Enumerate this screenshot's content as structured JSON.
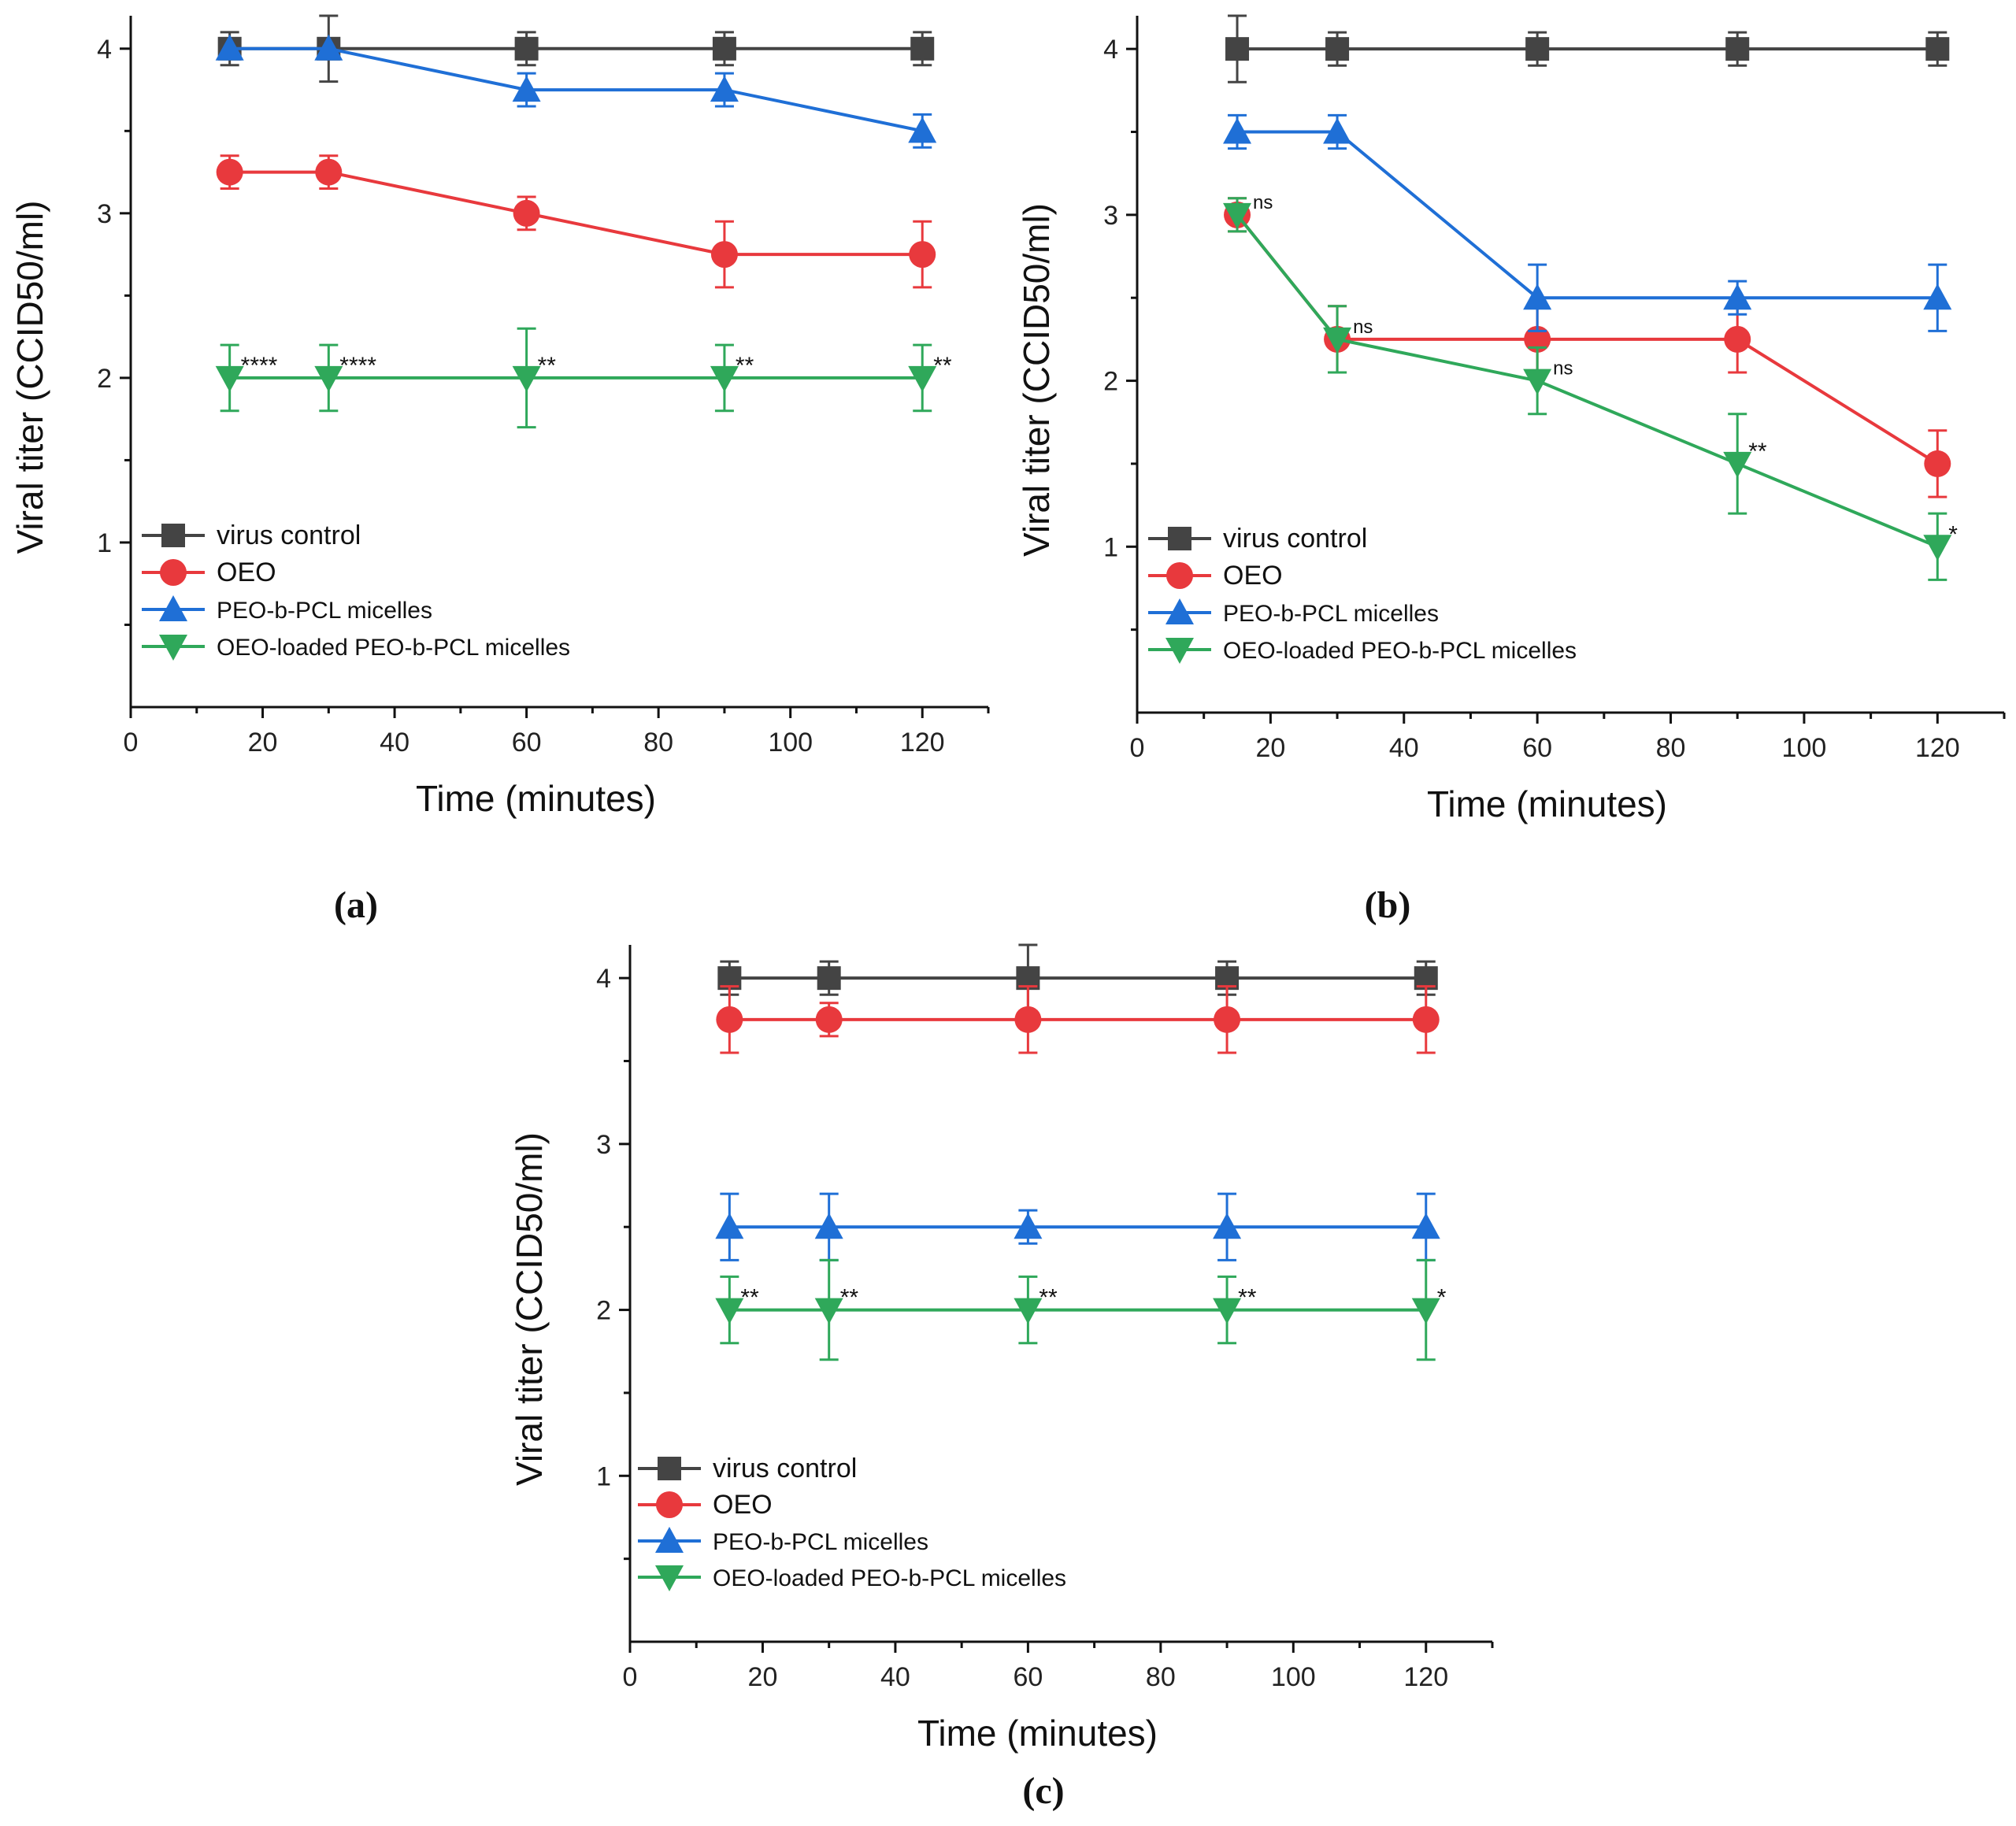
{
  "chart_data": [
    {
      "panel": "a",
      "type": "line",
      "panel_label": "(a)",
      "xlabel": "Time (minutes)",
      "ylabel": "Viral titer (CCID50/ml)",
      "xlim": [
        0,
        130
      ],
      "ylim": [
        0,
        4.2
      ],
      "xticks": [
        0,
        20,
        40,
        60,
        80,
        100,
        120
      ],
      "yticks": [
        1,
        2,
        3,
        4
      ],
      "x": [
        15,
        30,
        60,
        90,
        120
      ],
      "series": [
        {
          "name": "virus control",
          "color": "#444444",
          "marker": "square",
          "values": [
            4,
            4,
            4,
            4,
            4
          ],
          "errors": [
            0.1,
            0.2,
            0.1,
            0.1,
            0.1
          ]
        },
        {
          "name": "OEO",
          "color": "#e8393d",
          "marker": "circle",
          "values": [
            3.25,
            3.25,
            3.0,
            2.75,
            2.75
          ],
          "errors": [
            0.1,
            0.1,
            0.1,
            0.2,
            0.2
          ]
        },
        {
          "name": "PEO-b-PCL micelles",
          "color": "#1f6fd6",
          "marker": "triangle-up",
          "values": [
            4,
            4,
            3.75,
            3.75,
            3.5
          ],
          "errors": [
            0.0,
            0.0,
            0.1,
            0.1,
            0.1
          ]
        },
        {
          "name": "OEO-loaded PEO-b-PCL micelles",
          "color": "#2fa85a",
          "marker": "triangle-down",
          "values": [
            2,
            2,
            2,
            2,
            2
          ],
          "errors": [
            0.2,
            0.2,
            0.3,
            0.2,
            0.2
          ]
        }
      ],
      "annotations": [
        {
          "text": "****",
          "x": 15,
          "y": 2
        },
        {
          "text": "****",
          "x": 30,
          "y": 2
        },
        {
          "text": "**",
          "x": 60,
          "y": 2
        },
        {
          "text": "**",
          "x": 90,
          "y": 2
        },
        {
          "text": "**",
          "x": 120,
          "y": 2
        }
      ],
      "legend": "lower-left"
    },
    {
      "panel": "b",
      "type": "line",
      "panel_label": "(b)",
      "xlabel": "Time (minutes)",
      "ylabel": "Viral titer (CCID50/ml)",
      "xlim": [
        0,
        130
      ],
      "ylim": [
        0,
        4.2
      ],
      "xticks": [
        0,
        20,
        40,
        60,
        80,
        100,
        120
      ],
      "yticks": [
        1,
        2,
        3,
        4
      ],
      "x": [
        15,
        30,
        60,
        90,
        120
      ],
      "series": [
        {
          "name": "virus control",
          "color": "#444444",
          "marker": "square",
          "values": [
            4,
            4,
            4,
            4,
            4
          ],
          "errors": [
            0.2,
            0.1,
            0.1,
            0.1,
            0.1
          ]
        },
        {
          "name": "OEO",
          "color": "#e8393d",
          "marker": "circle",
          "values": [
            3.0,
            2.25,
            2.25,
            2.25,
            1.5
          ],
          "errors": [
            0.1,
            0.2,
            0.2,
            0.2,
            0.2
          ]
        },
        {
          "name": "PEO-b-PCL micelles",
          "color": "#1f6fd6",
          "marker": "triangle-up",
          "values": [
            3.5,
            3.5,
            2.5,
            2.5,
            2.5
          ],
          "errors": [
            0.1,
            0.1,
            0.2,
            0.1,
            0.2
          ]
        },
        {
          "name": "OEO-loaded PEO-b-PCL micelles",
          "color": "#2fa85a",
          "marker": "triangle-down",
          "values": [
            3.0,
            2.25,
            2.0,
            1.5,
            1.0
          ],
          "errors": [
            0.1,
            0.2,
            0.2,
            0.3,
            0.2
          ]
        }
      ],
      "annotations": [
        {
          "text": "ns",
          "x": 15,
          "y": 3.0,
          "small": true
        },
        {
          "text": "ns",
          "x": 30,
          "y": 2.25,
          "small": true
        },
        {
          "text": "ns",
          "x": 60,
          "y": 2.0,
          "small": true
        },
        {
          "text": "**",
          "x": 90,
          "y": 1.5
        },
        {
          "text": "*",
          "x": 120,
          "y": 1.0
        }
      ],
      "legend": "lower-left"
    },
    {
      "panel": "c",
      "type": "line",
      "panel_label": "(c)",
      "xlabel": "Time (minutes)",
      "ylabel": "Viral titer (CCID50/ml)",
      "xlim": [
        0,
        130
      ],
      "ylim": [
        0,
        4.2
      ],
      "xticks": [
        0,
        20,
        40,
        60,
        80,
        100,
        120
      ],
      "yticks": [
        1,
        2,
        3,
        4
      ],
      "x": [
        15,
        30,
        60,
        90,
        120
      ],
      "series": [
        {
          "name": "virus control",
          "color": "#444444",
          "marker": "square",
          "values": [
            4,
            4,
            4,
            4,
            4
          ],
          "errors": [
            0.1,
            0.1,
            0.2,
            0.1,
            0.1
          ]
        },
        {
          "name": "OEO",
          "color": "#e8393d",
          "marker": "circle",
          "values": [
            3.75,
            3.75,
            3.75,
            3.75,
            3.75
          ],
          "errors": [
            0.2,
            0.1,
            0.2,
            0.2,
            0.2
          ]
        },
        {
          "name": "PEO-b-PCL micelles",
          "color": "#1f6fd6",
          "marker": "triangle-up",
          "values": [
            2.5,
            2.5,
            2.5,
            2.5,
            2.5
          ],
          "errors": [
            0.2,
            0.2,
            0.1,
            0.2,
            0.2
          ]
        },
        {
          "name": "OEO-loaded PEO-b-PCL micelles",
          "color": "#2fa85a",
          "marker": "triangle-down",
          "values": [
            2,
            2,
            2,
            2,
            2
          ],
          "errors": [
            0.2,
            0.3,
            0.2,
            0.2,
            0.3
          ]
        }
      ],
      "annotations": [
        {
          "text": "**",
          "x": 15,
          "y": 2
        },
        {
          "text": "**",
          "x": 30,
          "y": 2
        },
        {
          "text": "**",
          "x": 60,
          "y": 2
        },
        {
          "text": "**",
          "x": 90,
          "y": 2
        },
        {
          "text": "*",
          "x": 120,
          "y": 2
        }
      ],
      "legend": "lower-left"
    }
  ]
}
